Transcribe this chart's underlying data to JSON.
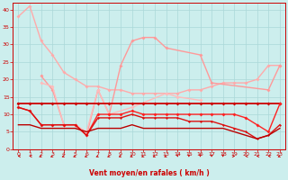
{
  "xlabel": "Vent moyen/en rafales ( km/h )",
  "bg_color": "#cceeed",
  "grid_color": "#aad8d8",
  "xlim": [
    -0.5,
    23.5
  ],
  "ylim": [
    0,
    42
  ],
  "yticks": [
    0,
    5,
    10,
    15,
    20,
    25,
    30,
    35,
    40
  ],
  "xticks": [
    0,
    1,
    2,
    3,
    4,
    5,
    6,
    7,
    8,
    9,
    10,
    11,
    12,
    13,
    14,
    15,
    16,
    17,
    18,
    19,
    20,
    21,
    22,
    23
  ],
  "lines": [
    {
      "x": [
        0,
        1,
        2,
        3,
        4,
        5,
        6,
        7,
        8,
        9,
        10,
        11,
        12,
        13,
        14,
        15,
        16,
        17,
        18,
        19,
        20,
        21,
        22,
        23
      ],
      "y": [
        38,
        41,
        31,
        27,
        22,
        20,
        18,
        18,
        17,
        17,
        16,
        16,
        16,
        16,
        16,
        17,
        17,
        18,
        19,
        19,
        19,
        20,
        24,
        24
      ],
      "color": "#ffaaaa",
      "lw": 1.0,
      "marker": "D",
      "ms": 2.0
    },
    {
      "x": [
        2,
        3,
        4,
        5,
        6,
        7,
        8,
        9,
        10,
        11,
        12,
        13,
        16,
        17,
        22,
        23
      ],
      "y": [
        21,
        17,
        7,
        7,
        4,
        17,
        10,
        24,
        31,
        32,
        32,
        29,
        27,
        19,
        17,
        24
      ],
      "color": "#ff9999",
      "lw": 1.0,
      "marker": "D",
      "ms": 2.0
    },
    {
      "x": [
        2,
        3,
        4,
        5,
        6,
        7,
        8,
        10,
        13,
        14,
        16
      ],
      "y": [
        19,
        18,
        7,
        7,
        5,
        17,
        10,
        12,
        16,
        15,
        14
      ],
      "color": "#ffbbbb",
      "lw": 1.0,
      "marker": "D",
      "ms": 2.0
    },
    {
      "x": [
        0,
        1,
        2,
        3,
        4,
        5,
        6,
        7,
        8,
        9,
        10,
        11,
        12,
        13,
        14,
        15,
        16,
        17,
        18,
        19,
        20,
        21,
        22,
        23
      ],
      "y": [
        13,
        13,
        13,
        13,
        13,
        13,
        13,
        13,
        13,
        13,
        13,
        13,
        13,
        13,
        13,
        13,
        13,
        13,
        13,
        13,
        13,
        13,
        13,
        13
      ],
      "color": "#cc0000",
      "lw": 1.3,
      "marker": "D",
      "ms": 2.0
    },
    {
      "x": [
        0,
        1,
        2,
        3,
        4,
        5,
        6,
        7,
        8,
        9,
        10,
        11,
        12,
        13,
        14,
        15,
        16,
        17,
        18,
        19,
        20,
        21,
        22,
        23
      ],
      "y": [
        12,
        11,
        7,
        7,
        7,
        7,
        4,
        10,
        10,
        10,
        11,
        10,
        10,
        10,
        10,
        10,
        10,
        10,
        10,
        10,
        9,
        7,
        5,
        13
      ],
      "color": "#ff2222",
      "lw": 1.0,
      "marker": "D",
      "ms": 2.0
    },
    {
      "x": [
        0,
        1,
        2,
        3,
        4,
        5,
        6,
        7,
        8,
        9,
        10,
        11,
        12,
        13,
        14,
        15,
        16,
        17,
        18,
        19,
        20,
        21,
        22,
        23
      ],
      "y": [
        12,
        11,
        7,
        7,
        7,
        7,
        4,
        9,
        9,
        9,
        10,
        9,
        9,
        9,
        9,
        8,
        8,
        8,
        7,
        6,
        5,
        3,
        4,
        7
      ],
      "color": "#dd1111",
      "lw": 1.0,
      "marker": "D",
      "ms": 1.5
    },
    {
      "x": [
        0,
        1,
        2,
        3,
        4,
        5,
        6,
        7,
        8,
        9,
        10,
        11,
        12,
        13,
        14,
        15,
        16,
        17,
        18,
        19,
        20,
        21,
        22,
        23
      ],
      "y": [
        7,
        7,
        6,
        6,
        6,
        6,
        5,
        6,
        6,
        6,
        7,
        6,
        6,
        6,
        6,
        6,
        6,
        6,
        6,
        5,
        4,
        3,
        4,
        6
      ],
      "color": "#bb0000",
      "lw": 1.0,
      "marker": null,
      "ms": 0
    }
  ],
  "arrow_angles_deg": [
    180,
    180,
    225,
    225,
    225,
    225,
    225,
    225,
    225,
    225,
    225,
    225,
    225,
    225,
    270,
    270,
    270,
    270,
    270,
    0,
    180,
    180,
    180,
    225
  ],
  "arrow_color": "#cc0000",
  "tick_color": "#cc0000",
  "spine_color": "#cc0000"
}
